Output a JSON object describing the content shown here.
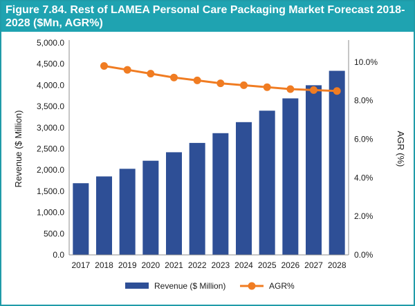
{
  "figure": {
    "title": "Figure 7.84. Rest of LAMEA Personal Care Packaging Market Forecast 2018-2028 ($Mn, AGR%)"
  },
  "colors": {
    "title_bg": "#1fa3b1",
    "frame": "#1f9ba8",
    "bar": "#2e4f96",
    "line": "#f07c22"
  },
  "chart_data": {
    "type": "bar+line",
    "title": "Figure 7.84. Rest of LAMEA Personal Care Packaging Market Forecast 2018-2028 ($Mn, AGR%)",
    "categories": [
      "2017",
      "2018",
      "2019",
      "2020",
      "2021",
      "2022",
      "2023",
      "2024",
      "2025",
      "2026",
      "2027",
      "2028"
    ],
    "series": [
      {
        "name": "Revenue ($ Million)",
        "type": "bar",
        "axis": "left",
        "values": [
          1690,
          1850,
          2030,
          2220,
          2420,
          2640,
          2870,
          3130,
          3400,
          3690,
          4000,
          4340
        ]
      },
      {
        "name": "AGR%",
        "type": "line",
        "axis": "right",
        "values": [
          null,
          9.8,
          9.6,
          9.4,
          9.2,
          9.05,
          8.9,
          8.8,
          8.7,
          8.6,
          8.55,
          8.5
        ]
      }
    ],
    "ylabel": "Revenue ($ Million)",
    "y2label": "AGR (%)",
    "ylim": [
      0,
      5000
    ],
    "y2lim": [
      0,
      11
    ],
    "yticks": [
      "0.0",
      "500.0",
      "1,000.0",
      "1,500.0",
      "2,000.0",
      "2,500.0",
      "3,000.0",
      "3,500.0",
      "4,000.0",
      "4,500.0",
      "5,000.0"
    ],
    "yticks_values": [
      0,
      500,
      1000,
      1500,
      2000,
      2500,
      3000,
      3500,
      4000,
      4500,
      5000
    ],
    "y2ticks": [
      "0.0%",
      "2.0%",
      "4.0%",
      "6.0%",
      "8.0%",
      "10.0%"
    ],
    "y2ticks_values": [
      0,
      2,
      4,
      6,
      8,
      10
    ],
    "legend": [
      "Revenue ($ Million)",
      "AGR%"
    ],
    "legend_position": "bottom"
  }
}
